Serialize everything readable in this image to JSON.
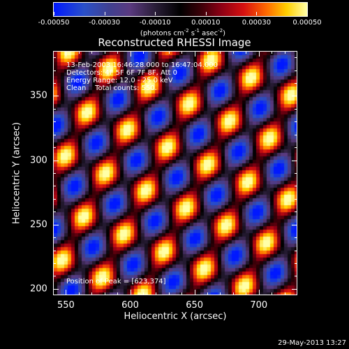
{
  "colorbar": {
    "tick_labels": [
      "-0.00050",
      "-0.00030",
      "-0.00010",
      "0.00010",
      "0.00030",
      "0.00050"
    ],
    "tick_values": [
      -0.0005,
      -0.0003,
      -0.0001,
      0.0001,
      0.0003,
      0.0005
    ],
    "range": [
      -0.0005,
      0.0005
    ]
  },
  "units": {
    "prefix": "(photons cm",
    "sup1": "-2",
    "mid1": " s",
    "sup2": "-1",
    "mid2": " asec",
    "sup3": "-2",
    "suffix": ")"
  },
  "title": "Reconstructed RHESSI Image",
  "overlay": {
    "line1": "13-Feb-2003 16:46:28.000 to 16:47:04.000",
    "line2": "Detectors: 4F 5F 6F 7F 8F, Att 0",
    "line3": "Energy Range: 12.0 - 25.0 keV",
    "line4": "Clean    Total counts: 550.",
    "peak": "Position of Peak = [623,374]"
  },
  "axes": {
    "xlabel": "Heliocentric X (arcsec)",
    "ylabel": "Heliocentric Y (arcsec)",
    "xlim": [
      540,
      730
    ],
    "ylim": [
      195,
      385
    ],
    "x_ticks": [
      "550",
      "600",
      "650",
      "700"
    ],
    "x_tick_values": [
      550,
      600,
      650,
      700
    ],
    "y_ticks": [
      "350",
      "300",
      "250",
      "200"
    ],
    "y_tick_values": [
      350,
      300,
      250,
      200
    ]
  },
  "timestamp": "29-May-2013 13:27"
}
